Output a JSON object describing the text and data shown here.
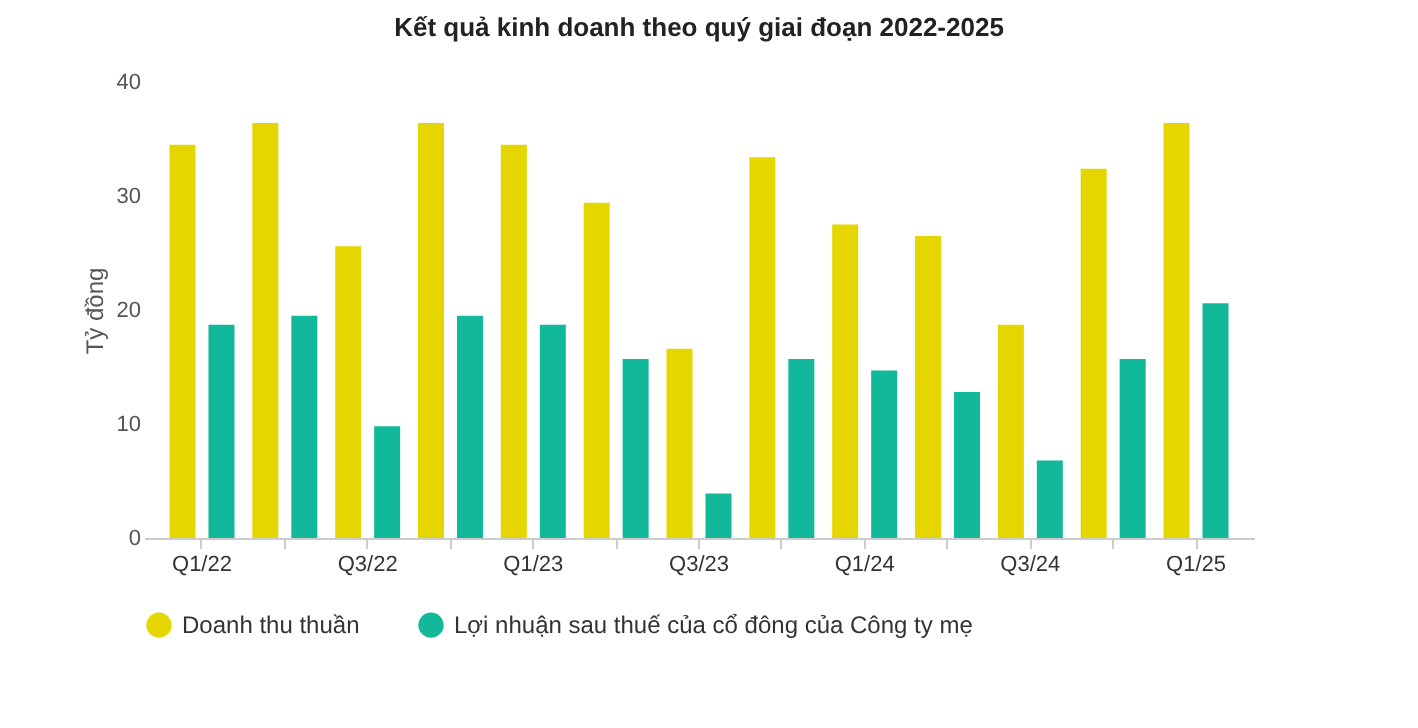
{
  "chart_data": {
    "type": "bar",
    "title": "Kết quả kinh doanh theo quý giai đoạn 2022-2025",
    "ylabel": "Tỷ đồng",
    "categories": [
      "Q1/22",
      null,
      "Q3/22",
      null,
      "Q1/23",
      null,
      "Q3/23",
      null,
      "Q1/24",
      null,
      "Q3/24",
      null,
      "Q1/25"
    ],
    "series": [
      {
        "name": "Doanh thu thuần",
        "color": "#e6d600",
        "values": [
          34.5,
          36.4,
          25.6,
          36.4,
          34.5,
          29.4,
          16.6,
          33.4,
          27.5,
          26.5,
          18.7,
          32.4,
          36.4
        ]
      },
      {
        "name": "Lợi nhuận sau thuế của cổ đông của Công ty mẹ",
        "color": "#12b89a",
        "values": [
          18.7,
          19.5,
          9.8,
          19.5,
          18.7,
          15.7,
          3.9,
          15.7,
          14.7,
          12.8,
          6.8,
          15.7,
          20.6
        ]
      }
    ],
    "ylim": [
      0,
      40
    ],
    "yticks": [
      0,
      10,
      20,
      30,
      40
    ],
    "grid": false,
    "legend": "bottom"
  }
}
